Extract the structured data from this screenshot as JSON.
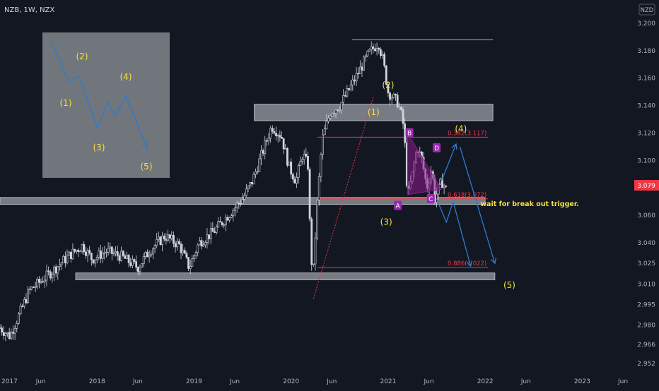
{
  "header": {
    "title": "NZB, 1W, NZX"
  },
  "currency_badge": "NZD",
  "price_badge": {
    "value": "3.079",
    "color": "#f23645"
  },
  "colors": {
    "candle": "#d1d4dc",
    "fib": "#f23645",
    "arrow": "#2e7bcf",
    "wave_label": "#f5e23c",
    "triangle": "#8c1a8c",
    "zone": "#b2b5be",
    "point_marker": "#9c27b0"
  },
  "chart_data": {
    "type": "candlestick",
    "ylim": [
      2.952,
      3.2
    ],
    "y_ticks": [
      "3.200",
      "3.180",
      "3.160",
      "3.140",
      "3.120",
      "3.100",
      "3.080",
      "3.060",
      "3.040",
      "3.025",
      "3.010",
      "2.995",
      "2.980",
      "2.966",
      "2.952"
    ],
    "x_ticks": [
      {
        "label": "2017",
        "t": 2017.0
      },
      {
        "label": "Jun",
        "t": 2017.42
      },
      {
        "label": "2018",
        "t": 2018.0
      },
      {
        "label": "Jun",
        "t": 2018.42
      },
      {
        "label": "2019",
        "t": 2019.0
      },
      {
        "label": "Jun",
        "t": 2019.42
      },
      {
        "label": "2020",
        "t": 2020.0
      },
      {
        "label": "Jun",
        "t": 2020.42
      },
      {
        "label": "2021",
        "t": 2021.0
      },
      {
        "label": "Jun",
        "t": 2021.42
      },
      {
        "label": "2022",
        "t": 2022.0
      },
      {
        "label": "Jun",
        "t": 2022.42
      },
      {
        "label": "2023",
        "t": 2023.0
      },
      {
        "label": "Jun",
        "t": 2023.42
      }
    ],
    "price_path": [
      [
        2017.0,
        2.978
      ],
      [
        2017.1,
        2.972
      ],
      [
        2017.2,
        2.988
      ],
      [
        2017.3,
        3.005
      ],
      [
        2017.42,
        3.012
      ],
      [
        2017.55,
        3.02
      ],
      [
        2017.7,
        3.03
      ],
      [
        2017.85,
        3.038
      ],
      [
        2017.95,
        3.028
      ],
      [
        2018.1,
        3.034
      ],
      [
        2018.25,
        3.03
      ],
      [
        2018.42,
        3.022
      ],
      [
        2018.55,
        3.035
      ],
      [
        2018.7,
        3.045
      ],
      [
        2018.85,
        3.038
      ],
      [
        2018.95,
        3.022
      ],
      [
        2019.05,
        3.04
      ],
      [
        2019.2,
        3.048
      ],
      [
        2019.35,
        3.06
      ],
      [
        2019.5,
        3.072
      ],
      [
        2019.6,
        3.085
      ],
      [
        2019.7,
        3.105
      ],
      [
        2019.8,
        3.125
      ],
      [
        2019.9,
        3.118
      ],
      [
        2019.98,
        3.095
      ],
      [
        2020.05,
        3.085
      ],
      [
        2020.12,
        3.105
      ],
      [
        2020.18,
        3.095
      ],
      [
        2020.2,
        3.03
      ],
      [
        2020.23,
        3.02
      ],
      [
        2020.27,
        3.07
      ],
      [
        2020.32,
        3.115
      ],
      [
        2020.4,
        3.135
      ],
      [
        2020.5,
        3.14
      ],
      [
        2020.6,
        3.152
      ],
      [
        2020.7,
        3.165
      ],
      [
        2020.8,
        3.178
      ],
      [
        2020.9,
        3.186
      ],
      [
        2020.95,
        3.172
      ],
      [
        2021.0,
        3.15
      ],
      [
        2021.05,
        3.146
      ],
      [
        2021.1,
        3.142
      ],
      [
        2021.15,
        3.13
      ],
      [
        2021.18,
        3.105
      ],
      [
        2021.2,
        3.072
      ],
      [
        2021.25,
        3.09
      ],
      [
        2021.3,
        3.11
      ],
      [
        2021.35,
        3.1
      ],
      [
        2021.4,
        3.08
      ],
      [
        2021.45,
        3.095
      ],
      [
        2021.48,
        3.072
      ],
      [
        2021.55,
        3.085
      ],
      [
        2021.6,
        3.079
      ]
    ],
    "fib_levels": [
      {
        "level": "0.382",
        "value": 3.117,
        "label": "0.382(3.117)"
      },
      {
        "level": "0.618",
        "value": 3.072,
        "label": "0.618(3.072)"
      },
      {
        "level": "0.886",
        "value": 3.022,
        "label": "0.886(3.022)"
      }
    ],
    "zones": [
      {
        "from": 3.129,
        "to": 3.141
      },
      {
        "from": 3.068,
        "to": 3.073
      },
      {
        "from": 3.013,
        "to": 3.018
      }
    ],
    "peak_line": 3.188,
    "wave_labels": [
      {
        "text": "(1)",
        "t": 2020.85,
        "y": 3.133
      },
      {
        "text": "(2)",
        "t": 2021.0,
        "y": 3.153
      },
      {
        "text": "(3)",
        "t": 2020.98,
        "y": 3.053
      },
      {
        "text": "(4)",
        "t": 2021.75,
        "y": 3.121
      },
      {
        "text": "(5)",
        "t": 2022.25,
        "y": 3.007
      }
    ],
    "points": [
      {
        "text": "A",
        "t": 2021.1,
        "y": 3.067
      },
      {
        "text": "B",
        "t": 2021.22,
        "y": 3.12
      },
      {
        "text": "C",
        "t": 2021.44,
        "y": 3.072
      },
      {
        "text": "D",
        "t": 2021.5,
        "y": 3.109
      }
    ],
    "annotation": "wait for break out trigger.",
    "inset_wave_labels": [
      "(1)",
      "(2)",
      "(3)",
      "(4)",
      "(5)"
    ]
  }
}
